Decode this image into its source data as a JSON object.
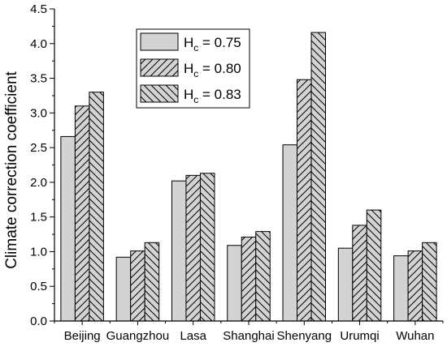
{
  "chart_data": {
    "type": "bar",
    "title": "",
    "xlabel": "",
    "ylabel": "Climate correction coefficient",
    "ylim": [
      0.0,
      4.5
    ],
    "yticks": [
      "0.0",
      "0.5",
      "1.0",
      "1.5",
      "2.0",
      "2.5",
      "3.0",
      "3.5",
      "4.0",
      "4.5"
    ],
    "categories": [
      "Beijing",
      "Guangzhou",
      "Lasa",
      "Shanghai",
      "Shenyang",
      "Urumqi",
      "Wuhan"
    ],
    "series": [
      {
        "name": "Hc = 0.75",
        "legend_main": "H",
        "legend_sub": "c",
        "legend_rest": " = 0.75",
        "pattern": "solid-gray",
        "values": [
          2.66,
          0.92,
          2.02,
          1.09,
          2.54,
          1.05,
          0.94
        ]
      },
      {
        "name": "Hc = 0.80",
        "legend_main": "H",
        "legend_sub": "c",
        "legend_rest": " = 0.80",
        "pattern": "forward-hatch",
        "values": [
          3.1,
          1.01,
          2.1,
          1.21,
          3.48,
          1.38,
          1.01
        ]
      },
      {
        "name": "Hc = 0.83",
        "legend_main": "H",
        "legend_sub": "c",
        "legend_rest": " = 0.83",
        "pattern": "back-hatch",
        "values": [
          3.3,
          1.13,
          2.13,
          1.29,
          4.16,
          1.6,
          1.13
        ]
      }
    ],
    "legend_position": "top-center",
    "grid": false,
    "colors": {
      "fill": "#d3d3d3",
      "stroke": "#000000",
      "background": "#ffffff"
    }
  }
}
